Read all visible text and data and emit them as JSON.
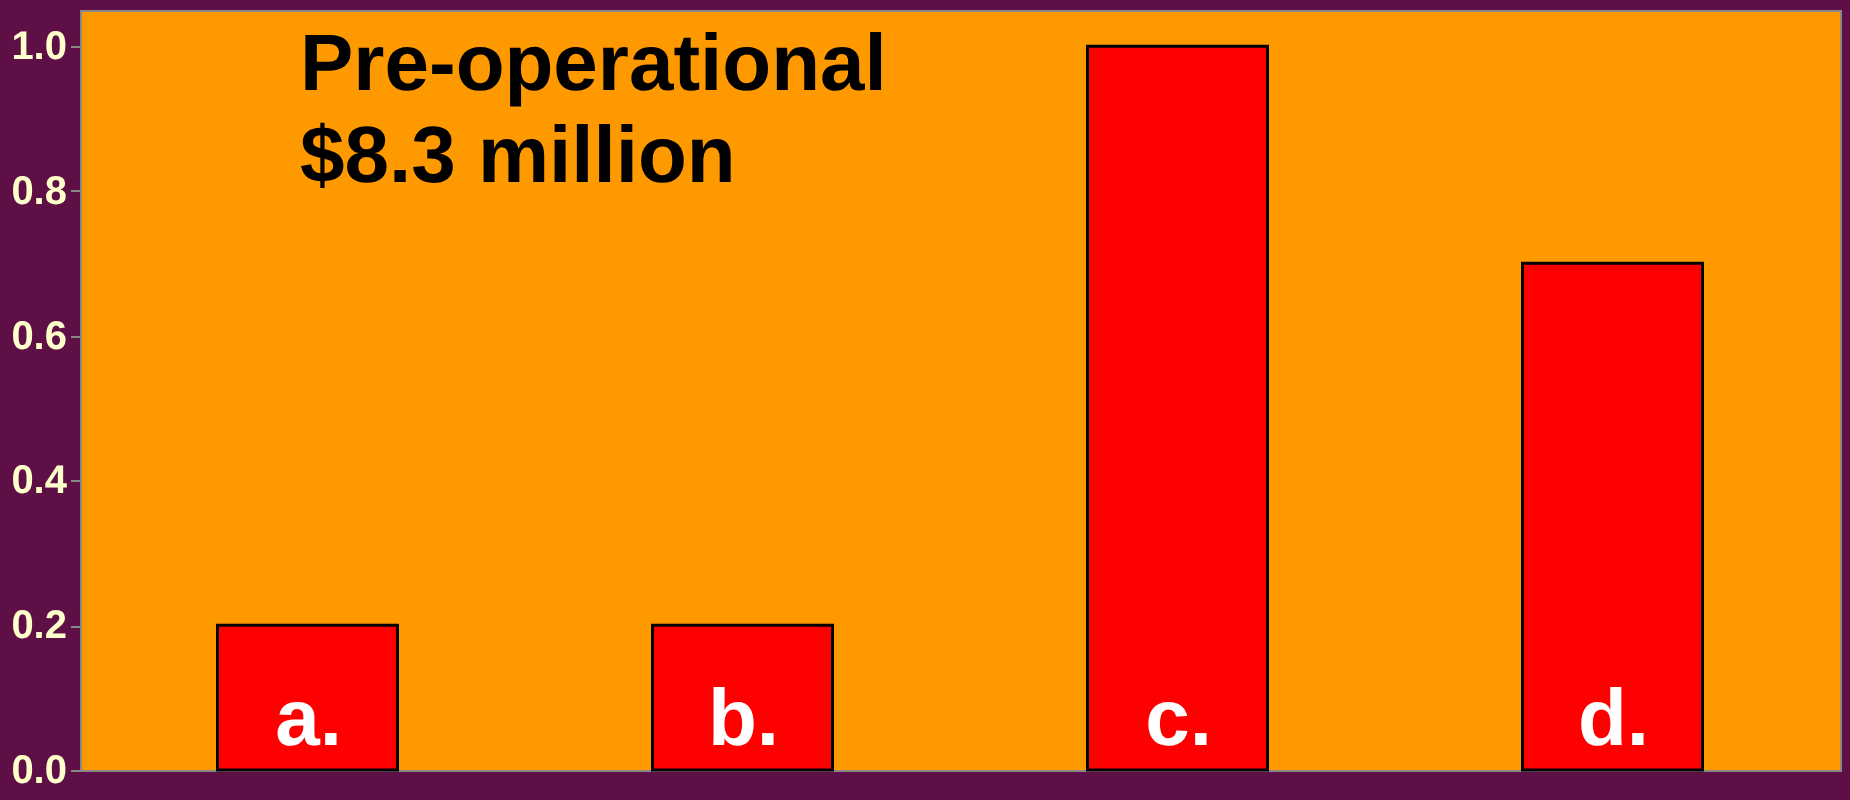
{
  "chart_data": {
    "type": "bar",
    "categories": [
      "a.",
      "b.",
      "c.",
      "d."
    ],
    "values": [
      0.2,
      0.2,
      1.0,
      0.7
    ],
    "color": "#ff0000",
    "ylim": [
      0,
      1.05
    ],
    "yticks": [
      {
        "value": 0,
        "label": "0.0"
      },
      {
        "value": 0.2,
        "label": "0.2"
      },
      {
        "value": 0.4,
        "label": "0.4"
      },
      {
        "value": 0.6,
        "label": "0.6"
      },
      {
        "value": 0.8,
        "label": "0.8"
      },
      {
        "value": 1.0,
        "label": "1.0"
      }
    ],
    "annotations": [
      "Pre-operational",
      "$8.3 million"
    ],
    "grid": false
  }
}
